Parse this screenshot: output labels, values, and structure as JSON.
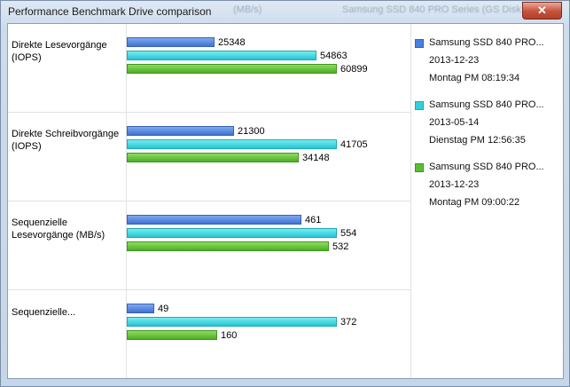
{
  "window": {
    "title": "Performance Benchmark Drive comparison",
    "background_text": [
      "(MB/s)",
      "Samsung SSD 840 PRO Series (GS Disk"
    ],
    "close_label": "✕"
  },
  "chart_data": {
    "type": "bar",
    "orientation": "horizontal",
    "categories": [
      "Direkte Lesevorgänge (IOPS)",
      "Direkte Schreibvorgänge (IOPS)",
      "Sequenzielle Lesevorgänge (MB/s)",
      "Sequenzielle..."
    ],
    "series": [
      {
        "name": "Samsung SSD 840 PRO... 2013-12-23 Montag PM 08:19:34",
        "values": [
          25348,
          21300,
          461,
          49
        ],
        "color": "#4a7fe0"
      },
      {
        "name": "Samsung SSD 840 PRO... 2013-05-14 Dienstag PM 12:56:35",
        "values": [
          54863,
          41705,
          554,
          372
        ],
        "color": "#32cfd9"
      },
      {
        "name": "Samsung SSD 840 PRO... 2013-12-23 Montag PM 09:00:22",
        "values": [
          60899,
          34148,
          532,
          160
        ],
        "color": "#5bbd33"
      }
    ],
    "value_labels": [
      [
        "25348",
        "54863",
        "60899"
      ],
      [
        "21300",
        "41705",
        "34148"
      ],
      [
        "461",
        "554",
        "532"
      ],
      [
        "49",
        "372",
        "160"
      ]
    ],
    "legend_position": "right",
    "grid": false
  },
  "legend": [
    {
      "name": "Samsung SSD 840 PRO...",
      "date": "2013-12-23",
      "time": "Montag PM 08:19:34",
      "color": "#4a7fe0"
    },
    {
      "name": "Samsung SSD 840 PRO...",
      "date": "2013-05-14",
      "time": "Dienstag PM 12:56:35",
      "color": "#32cfd9"
    },
    {
      "name": "Samsung SSD 840 PRO...",
      "date": "2013-12-23",
      "time": "Montag PM 09:00:22",
      "color": "#5bbd33"
    }
  ]
}
